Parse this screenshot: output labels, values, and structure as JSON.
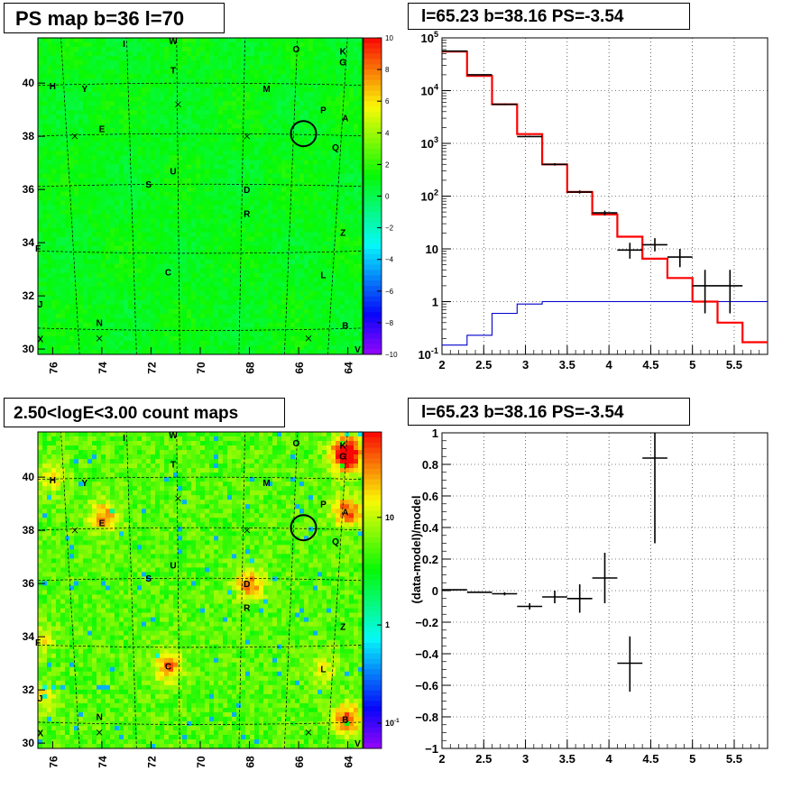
{
  "panels": {
    "top_left_title": "PS map b=36 l=70",
    "top_right_title": "l=65.23 b=38.16 PS=-3.54",
    "bottom_left_title": "2.50<logE<3.00 count maps",
    "bottom_right_title": "l=65.23 b=38.16 PS=-3.54"
  },
  "colors": {
    "model_line": "#ff0000",
    "fraction_line": "#0000cc",
    "data": "#000000",
    "marker_circle": "#000000"
  },
  "chart_data": [
    {
      "id": "ps-map",
      "type": "heatmap",
      "title": "PS map b=36 l=70",
      "x_ticks": [
        "76",
        "74",
        "72",
        "70",
        "68",
        "66",
        "64"
      ],
      "y_ticks": [
        "30",
        "32",
        "34",
        "36",
        "38",
        "40"
      ],
      "xlim": [
        76.6,
        63.4
      ],
      "ylim": [
        29.8,
        41.7
      ],
      "colorbar_ticks": [
        "10",
        "8",
        "6",
        "4",
        "2",
        "0",
        "−2",
        "−4",
        "−6",
        "−8",
        "−10"
      ],
      "colorbar_range": [
        -10,
        10
      ],
      "typical_value": 1,
      "marker_circle": {
        "l": 65.8,
        "b": 38.1
      },
      "source_labels": [
        {
          "t": "I",
          "l": 73.1,
          "b": 41.5
        },
        {
          "t": "W",
          "l": 71.1,
          "b": 41.6
        },
        {
          "t": "O",
          "l": 66.1,
          "b": 41.3
        },
        {
          "t": "K",
          "l": 64.2,
          "b": 41.2
        },
        {
          "t": "G",
          "l": 64.2,
          "b": 40.8
        },
        {
          "t": "T",
          "l": 71.1,
          "b": 40.5
        },
        {
          "t": "H",
          "l": 76.0,
          "b": 39.9
        },
        {
          "t": "Y",
          "l": 74.7,
          "b": 39.8
        },
        {
          "t": "M",
          "l": 67.3,
          "b": 39.8
        },
        {
          "t": "P",
          "l": 65.0,
          "b": 39.0
        },
        {
          "t": "A",
          "l": 64.1,
          "b": 38.7
        },
        {
          "t": "E",
          "l": 74.0,
          "b": 38.3
        },
        {
          "t": "Q",
          "l": 64.5,
          "b": 37.6
        },
        {
          "t": "U",
          "l": 71.1,
          "b": 36.7
        },
        {
          "t": "S",
          "l": 72.1,
          "b": 36.2
        },
        {
          "t": "D",
          "l": 68.1,
          "b": 36.0
        },
        {
          "t": "R",
          "l": 68.1,
          "b": 35.1
        },
        {
          "t": "Z",
          "l": 64.2,
          "b": 34.4
        },
        {
          "t": "F",
          "l": 76.6,
          "b": 33.8
        },
        {
          "t": "C",
          "l": 71.3,
          "b": 32.9
        },
        {
          "t": "L",
          "l": 65.0,
          "b": 32.8
        },
        {
          "t": "J",
          "l": 76.5,
          "b": 31.7
        },
        {
          "t": "N",
          "l": 74.1,
          "b": 31.0
        },
        {
          "t": "B",
          "l": 64.1,
          "b": 30.9
        },
        {
          "t": "X",
          "l": 76.5,
          "b": 30.4
        },
        {
          "t": "V",
          "l": 63.6,
          "b": 30.0
        }
      ],
      "cross_markers": [
        {
          "l": 70.9,
          "b": 39.2
        },
        {
          "l": 75.1,
          "b": 38.0
        },
        {
          "l": 68.1,
          "b": 38.0
        },
        {
          "l": 74.1,
          "b": 30.4
        },
        {
          "l": 65.6,
          "b": 30.4
        }
      ]
    },
    {
      "id": "spectrum",
      "type": "line",
      "title": "l=65.23 b=38.16 PS=-3.54",
      "yscale": "log",
      "xlim": [
        2.0,
        5.9
      ],
      "ylim": [
        0.1,
        100000
      ],
      "x_ticks": [
        "2",
        "2.5",
        "3",
        "3.5",
        "4",
        "4.5",
        "5",
        "5.5"
      ],
      "y_ticks": [
        "10^-1",
        "1",
        "10",
        "10^2",
        "10^3",
        "10^4",
        "10^5"
      ],
      "grid": true,
      "bin_edges": [
        2.0,
        2.3,
        2.6,
        2.9,
        3.2,
        3.5,
        3.8,
        4.1,
        4.4,
        4.7,
        5.0,
        5.3,
        5.6,
        5.9
      ],
      "model": [
        55000,
        19000,
        5500,
        1500,
        400,
        120,
        45,
        17,
        6.5,
        2.8,
        1.0,
        0.4,
        0.17
      ],
      "fraction": [
        0.15,
        0.23,
        0.6,
        0.9,
        1.0,
        1.0,
        1.0,
        1.0,
        1.0,
        1.0,
        1.0,
        1.0,
        1.0
      ],
      "data": [
        {
          "x": 2.15,
          "y": 56000,
          "ylo": 55000,
          "yhi": 57000
        },
        {
          "x": 2.45,
          "y": 20000,
          "ylo": 19500,
          "yhi": 20500
        },
        {
          "x": 2.75,
          "y": 5500,
          "ylo": 5300,
          "yhi": 5700
        },
        {
          "x": 3.05,
          "y": 1350,
          "ylo": 1300,
          "yhi": 1400
        },
        {
          "x": 3.35,
          "y": 400,
          "ylo": 380,
          "yhi": 420
        },
        {
          "x": 3.65,
          "y": 120,
          "ylo": 112,
          "yhi": 128
        },
        {
          "x": 3.95,
          "y": 48,
          "ylo": 43,
          "yhi": 53
        },
        {
          "x": 4.25,
          "y": 9.5,
          "ylo": 6.5,
          "yhi": 13
        },
        {
          "x": 4.55,
          "y": 12,
          "ylo": 9,
          "yhi": 16
        },
        {
          "x": 4.85,
          "y": 7,
          "ylo": 4.5,
          "yhi": 10
        },
        {
          "x": 5.15,
          "y": 2,
          "ylo": 0.6,
          "yhi": 4
        },
        {
          "x": 5.45,
          "y": 2,
          "ylo": 0.6,
          "yhi": 4
        }
      ]
    },
    {
      "id": "count-map",
      "type": "heatmap",
      "title": "2.50<logE<3.00 count maps",
      "x_ticks": [
        "76",
        "74",
        "72",
        "70",
        "68",
        "66",
        "64"
      ],
      "y_ticks": [
        "30",
        "32",
        "34",
        "36",
        "38",
        "40"
      ],
      "xlim": [
        76.6,
        63.4
      ],
      "ylim": [
        29.8,
        41.7
      ],
      "colorbar_ticks": [
        "10",
        "1",
        "10^-1"
      ],
      "colorscale": "log",
      "marker_circle": {
        "l": 65.8,
        "b": 38.1
      },
      "hotspots": [
        {
          "t": "K",
          "l": 64.1,
          "b": 41.0,
          "s": 1.0
        },
        {
          "t": "G",
          "l": 64.0,
          "b": 40.7,
          "s": 0.9
        },
        {
          "t": "A",
          "l": 64.0,
          "b": 38.7,
          "s": 1.0
        },
        {
          "t": "E",
          "l": 73.9,
          "b": 38.5,
          "s": 0.8
        },
        {
          "t": "D",
          "l": 68.0,
          "b": 36.0,
          "s": 0.9
        },
        {
          "t": "C",
          "l": 71.3,
          "b": 32.9,
          "s": 0.9
        },
        {
          "t": "B",
          "l": 64.0,
          "b": 30.9,
          "s": 1.0
        },
        {
          "t": "H",
          "l": 76.0,
          "b": 40.0,
          "s": 0.5
        },
        {
          "t": "F",
          "l": 76.5,
          "b": 33.9,
          "s": 0.5
        },
        {
          "t": "J",
          "l": 76.5,
          "b": 31.7,
          "s": 0.5
        },
        {
          "t": "L",
          "l": 65.0,
          "b": 32.8,
          "s": 0.4
        }
      ]
    },
    {
      "id": "residuals",
      "type": "scatter",
      "title": "l=65.23 b=38.16 PS=-3.54",
      "ylabel": "(data-model)/model",
      "xlim": [
        2.0,
        5.9
      ],
      "ylim": [
        -1,
        1
      ],
      "x_ticks": [
        "2",
        "2.5",
        "3",
        "3.5",
        "4",
        "4.5",
        "5",
        "5.5"
      ],
      "y_ticks": [
        "−1",
        "−0.8",
        "−0.6",
        "−0.4",
        "−0.2",
        "0",
        "0.2",
        "0.4",
        "0.6",
        "0.8",
        "1"
      ],
      "grid": true,
      "data": [
        {
          "x": 2.15,
          "y": 0.005,
          "ylo": 0.0,
          "yhi": 0.01
        },
        {
          "x": 2.45,
          "y": -0.01,
          "ylo": -0.015,
          "yhi": -0.005
        },
        {
          "x": 2.75,
          "y": -0.02,
          "ylo": -0.03,
          "yhi": -0.01
        },
        {
          "x": 3.05,
          "y": -0.1,
          "ylo": -0.12,
          "yhi": -0.08
        },
        {
          "x": 3.35,
          "y": -0.04,
          "ylo": -0.08,
          "yhi": 0.0
        },
        {
          "x": 3.65,
          "y": -0.05,
          "ylo": -0.14,
          "yhi": 0.04
        },
        {
          "x": 3.95,
          "y": 0.08,
          "ylo": -0.08,
          "yhi": 0.24
        },
        {
          "x": 4.25,
          "y": -0.46,
          "ylo": -0.64,
          "yhi": -0.29
        },
        {
          "x": 4.55,
          "y": 0.84,
          "ylo": 0.3,
          "yhi": 1.0
        }
      ]
    }
  ]
}
